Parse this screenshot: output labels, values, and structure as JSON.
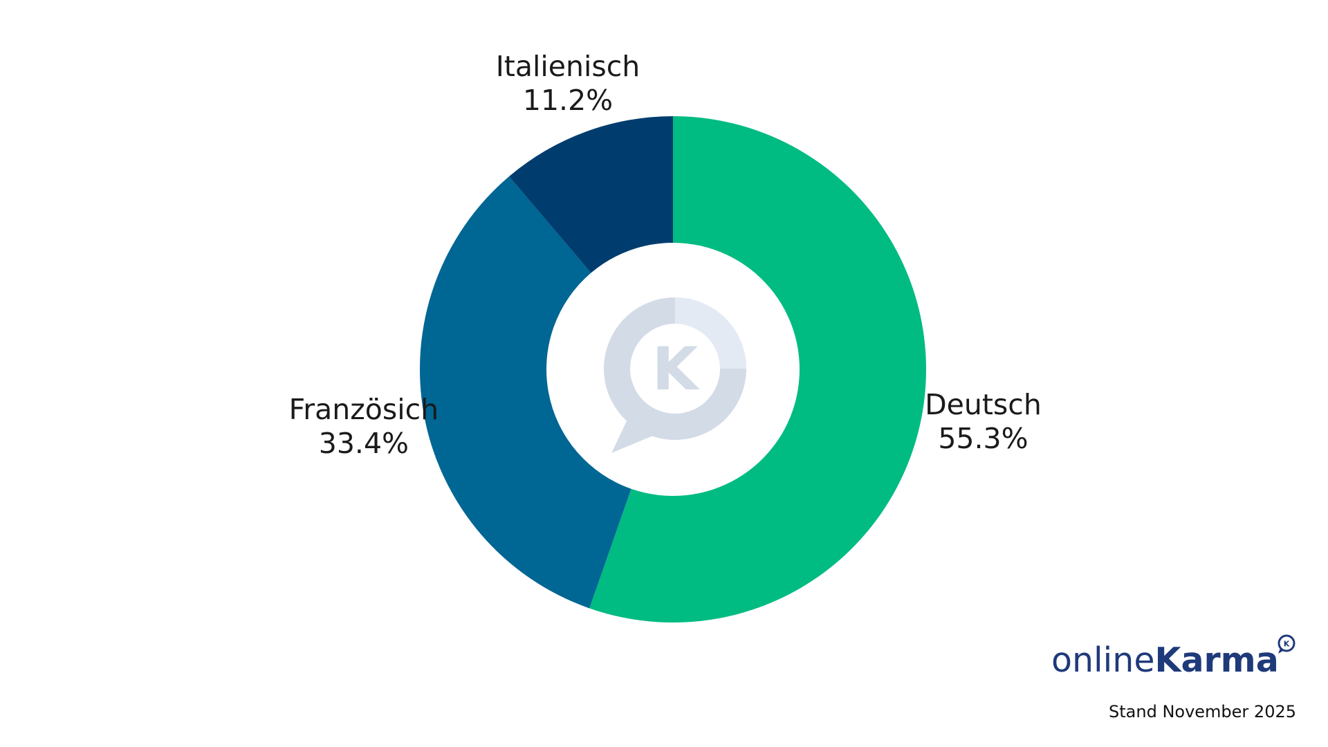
{
  "chart_data": {
    "type": "pie",
    "variant": "donut",
    "title": "",
    "slices": [
      {
        "label": "Deutsch",
        "value": 55.3,
        "display": "55.3%",
        "color": "#00bb82"
      },
      {
        "label": "Französich",
        "value": 33.4,
        "display": "33.4%",
        "color": "#006694"
      },
      {
        "label": "Italienisch",
        "value": 11.2,
        "display": "11.2%",
        "color": "#003d6e"
      }
    ],
    "start": "top",
    "direction": "clockwise",
    "legend": "none",
    "center_icon": "onlinekarma-watermark-icon"
  },
  "branding": {
    "logo_light": "online",
    "logo_bold": "Karma",
    "logo_badge_icon": "k-speech-bubble-icon",
    "brand_color": "#1f3a7a"
  },
  "footnote": "Stand November 2025"
}
